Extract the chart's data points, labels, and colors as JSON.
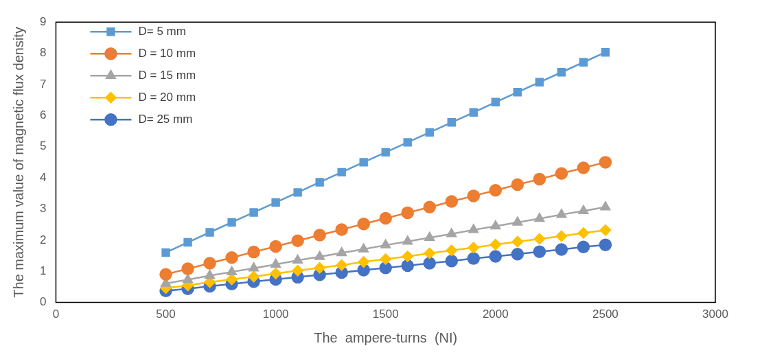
{
  "chart_data": {
    "type": "line",
    "xlabel": "The  ampere-turns  (NI)",
    "ylabel": "The maximum value of magnetic flux density",
    "x": [
      500,
      600,
      700,
      800,
      900,
      1000,
      1100,
      1200,
      1300,
      1400,
      1500,
      1600,
      1700,
      1800,
      1900,
      2000,
      2100,
      2200,
      2300,
      2400,
      2500
    ],
    "series": [
      {
        "name": "D= 5 mm",
        "color": "#5b9bd5",
        "marker": "square",
        "values": [
          1.6,
          1.93,
          2.25,
          2.57,
          2.89,
          3.21,
          3.53,
          3.86,
          4.18,
          4.5,
          4.82,
          5.14,
          5.46,
          5.78,
          6.1,
          6.43,
          6.75,
          7.07,
          7.39,
          7.71,
          8.03
        ]
      },
      {
        "name": "D = 10 mm",
        "color": "#ed7d31",
        "marker": "circle",
        "values": [
          0.9,
          1.08,
          1.26,
          1.44,
          1.62,
          1.8,
          1.98,
          2.16,
          2.34,
          2.52,
          2.7,
          2.88,
          3.06,
          3.24,
          3.42,
          3.6,
          3.78,
          3.96,
          4.14,
          4.32,
          4.5
        ]
      },
      {
        "name": "D = 15 mm",
        "color": "#a5a5a5",
        "marker": "triangle",
        "values": [
          0.61,
          0.73,
          0.86,
          0.98,
          1.1,
          1.22,
          1.35,
          1.47,
          1.59,
          1.71,
          1.84,
          1.96,
          2.08,
          2.2,
          2.33,
          2.45,
          2.57,
          2.69,
          2.82,
          2.94,
          3.06
        ]
      },
      {
        "name": "D = 20 mm",
        "color": "#ffc000",
        "marker": "diamond",
        "values": [
          0.46,
          0.55,
          0.65,
          0.74,
          0.83,
          0.93,
          1.02,
          1.11,
          1.2,
          1.3,
          1.39,
          1.48,
          1.58,
          1.67,
          1.76,
          1.86,
          1.95,
          2.04,
          2.13,
          2.23,
          2.32
        ]
      },
      {
        "name": "D= 25 mm",
        "color": "#4472c4",
        "marker": "circle",
        "values": [
          0.37,
          0.44,
          0.52,
          0.59,
          0.67,
          0.74,
          0.81,
          0.89,
          0.96,
          1.04,
          1.11,
          1.18,
          1.26,
          1.33,
          1.41,
          1.48,
          1.55,
          1.63,
          1.7,
          1.78,
          1.85
        ]
      }
    ],
    "xlim": [
      0,
      3000
    ],
    "xticks": [
      0,
      500,
      1000,
      1500,
      2000,
      2500,
      3000
    ],
    "ylim": [
      0,
      9
    ],
    "yticks": [
      0,
      1,
      2,
      3,
      4,
      5,
      6,
      7,
      8,
      9
    ],
    "grid": false,
    "legend": "top left",
    "line_style": "solid"
  }
}
